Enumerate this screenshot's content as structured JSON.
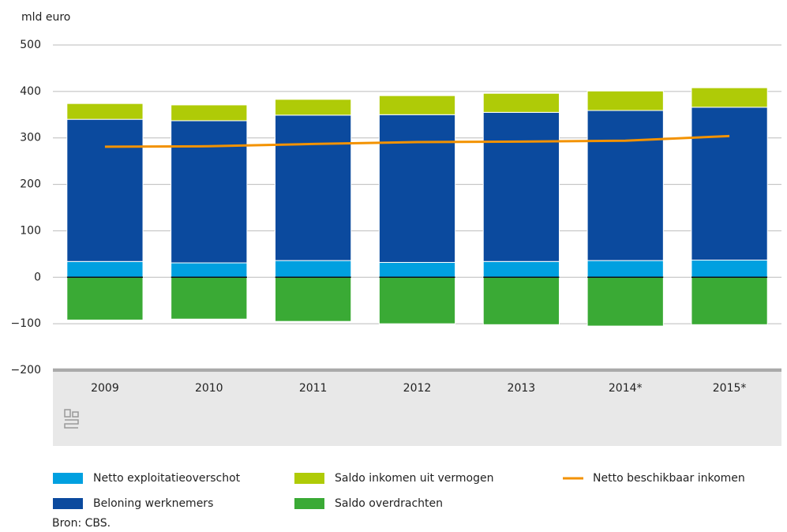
{
  "chart_data": {
    "type": "bar",
    "stacked": true,
    "y_label": "mld euro",
    "categories": [
      "2009",
      "2010",
      "2011",
      "2012",
      "2013",
      "2014*",
      "2015*"
    ],
    "series": [
      {
        "name": "Netto exploitatieoverschot",
        "color": "#00a0e0",
        "values": [
          34,
          31,
          36,
          32,
          34,
          36,
          37
        ]
      },
      {
        "name": "Beloning werknemers",
        "color": "#0b4a9e",
        "values": [
          306,
          306,
          313,
          318,
          321,
          323,
          329
        ]
      },
      {
        "name": "Saldo inkomen uit vermogen",
        "color": "#afcb07",
        "values": [
          34,
          34,
          34,
          41,
          41,
          42,
          42
        ]
      },
      {
        "name": "Saldo overdrachten",
        "color": "#3aaa35",
        "values": [
          -92,
          -90,
          -95,
          -100,
          -102,
          -105,
          -102
        ]
      },
      {
        "name": "Netto beschikbaar inkomen",
        "type": "line",
        "color": "#f39200",
        "values": [
          281,
          282,
          287,
          291,
          292,
          294,
          304
        ]
      }
    ],
    "ylim": [
      -200,
      500
    ],
    "yticks": [
      {
        "value": -200,
        "label": "−200"
      },
      {
        "value": -100,
        "label": "−100"
      },
      0,
      100,
      200,
      300,
      400,
      500
    ],
    "grid": true,
    "source": "Bron: CBS."
  }
}
